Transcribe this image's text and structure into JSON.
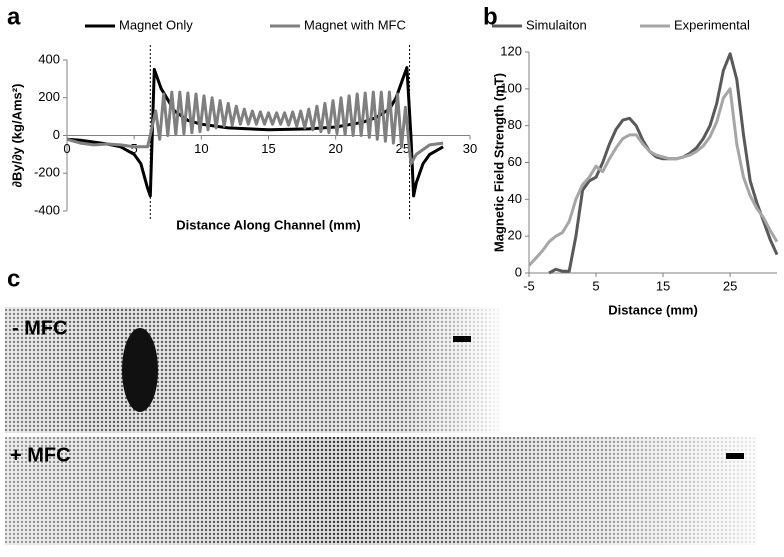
{
  "panels": [
    "a",
    "b",
    "c"
  ],
  "images": [
    "- MFC",
    "+ MFC"
  ],
  "chart_data": [
    {
      "type": "line",
      "x_label": "Distance Along Channel (mm)",
      "y_label": "∂By/∂y  (kg/Ams²)",
      "xlim": [
        0,
        30
      ],
      "xticks": [
        0,
        5,
        10,
        15,
        20,
        25,
        30
      ],
      "ylim": [
        -400,
        400
      ],
      "yticks": [
        -400,
        -200,
        0,
        200,
        400
      ],
      "vlines": [
        6.2,
        25.5
      ],
      "series": [
        {
          "name": "Magnet Only",
          "color": "#000000",
          "x": [
            0,
            1,
            2,
            3,
            4,
            5,
            5.5,
            6,
            6.2,
            6.5,
            7,
            8,
            9,
            10,
            12,
            15,
            18,
            20,
            22,
            23,
            24,
            24.5,
            25,
            25.3,
            25.6,
            25.8,
            26,
            26.5,
            27,
            28
          ],
          "values": [
            -20,
            -25,
            -35,
            -45,
            -60,
            -100,
            -150,
            -280,
            -320,
            350,
            250,
            130,
            80,
            60,
            40,
            30,
            35,
            45,
            70,
            95,
            140,
            200,
            300,
            360,
            0,
            -320,
            -250,
            -150,
            -100,
            -60
          ]
        },
        {
          "name": "Magnet with MFC",
          "color": "#7f7f7f",
          "x": [
            0,
            1,
            2,
            3,
            4,
            5,
            6,
            6.6,
            6.9,
            7.2,
            7.5,
            7.8,
            8.1,
            8.4,
            8.7,
            9.0,
            9.3,
            9.6,
            9.9,
            10.2,
            10.5,
            10.8,
            11.1,
            11.4,
            11.7,
            12.0,
            12.3,
            12.6,
            12.9,
            13.2,
            13.5,
            13.8,
            14.1,
            14.4,
            14.7,
            15.0,
            15.3,
            15.6,
            15.9,
            16.2,
            16.5,
            16.8,
            17.1,
            17.4,
            17.7,
            18.0,
            18.3,
            18.6,
            18.9,
            19.2,
            19.5,
            19.8,
            20.1,
            20.4,
            20.7,
            21.0,
            21.3,
            21.6,
            21.9,
            22.2,
            22.5,
            22.8,
            23.1,
            23.4,
            23.7,
            24.0,
            24.3,
            24.6,
            24.9,
            25.2,
            25.6,
            26,
            27,
            28
          ],
          "values": [
            -20,
            -40,
            -50,
            -45,
            -50,
            -60,
            -60,
            130,
            -20,
            220,
            0,
            230,
            5,
            230,
            10,
            225,
            15,
            220,
            20,
            210,
            30,
            200,
            40,
            185,
            50,
            170,
            55,
            155,
            60,
            140,
            60,
            130,
            60,
            125,
            60,
            120,
            60,
            120,
            60,
            120,
            55,
            125,
            50,
            130,
            40,
            140,
            30,
            155,
            20,
            170,
            15,
            185,
            10,
            200,
            5,
            210,
            0,
            220,
            0,
            225,
            -10,
            230,
            -20,
            230,
            -30,
            230,
            -40,
            220,
            -60,
            150,
            -150,
            -100,
            -50,
            -40
          ]
        }
      ]
    },
    {
      "type": "line",
      "x_label": "Distance (mm)",
      "y_label": "Magnetic Field Strength (mT)",
      "xlim": [
        -5,
        32
      ],
      "xticks": [
        -5,
        5,
        15,
        25
      ],
      "ylim": [
        0,
        120
      ],
      "yticks": [
        0,
        20,
        40,
        60,
        80,
        100,
        120
      ],
      "series": [
        {
          "name": "Simulaiton",
          "color": "#595959",
          "x": [
            -2,
            -1,
            0,
            1,
            2,
            3,
            4,
            5,
            6,
            7,
            8,
            9,
            10,
            11,
            12,
            13,
            14,
            15,
            16,
            17,
            18,
            19,
            20,
            21,
            22,
            23,
            24,
            25,
            26,
            27,
            28,
            29,
            30,
            31,
            32
          ],
          "values": [
            0,
            2,
            1,
            1,
            20,
            45,
            50,
            52,
            60,
            70,
            78,
            83,
            84,
            80,
            72,
            66,
            63,
            62,
            62,
            62,
            63,
            65,
            68,
            73,
            80,
            92,
            110,
            119,
            105,
            75,
            50,
            38,
            28,
            18,
            10
          ]
        },
        {
          "name": "Experimental",
          "color": "#a6a6a6",
          "x": [
            -5,
            -4,
            -3,
            -2,
            -1,
            0,
            1,
            2,
            3,
            4,
            5,
            6,
            7,
            8,
            9,
            10,
            11,
            12,
            13,
            14,
            15,
            16,
            17,
            18,
            19,
            20,
            21,
            22,
            23,
            24,
            25,
            26,
            27,
            28,
            29,
            30,
            31,
            32
          ],
          "values": [
            4,
            8,
            12,
            17,
            20,
            22,
            28,
            40,
            48,
            52,
            58,
            55,
            62,
            68,
            73,
            75,
            75,
            70,
            66,
            64,
            63,
            62,
            62,
            63,
            64,
            66,
            69,
            74,
            82,
            95,
            100,
            70,
            52,
            42,
            35,
            30,
            23,
            17
          ]
        }
      ]
    }
  ]
}
